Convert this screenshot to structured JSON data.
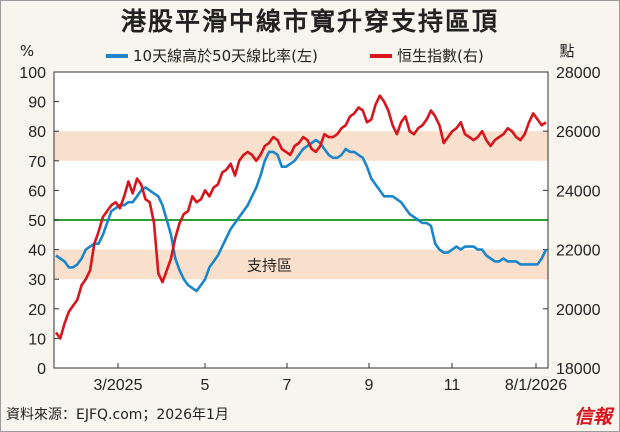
{
  "chart_data": {
    "type": "line",
    "title": "港股平滑中線市寬升穿支持區頂",
    "source": "資料來源：EJFQ.com；2026年1月",
    "brand": "信報",
    "left_axis": {
      "unit": "%",
      "range": [
        0,
        100
      ],
      "ticks": [
        0,
        10,
        20,
        30,
        40,
        50,
        60,
        70,
        80,
        90,
        100
      ]
    },
    "right_axis": {
      "unit": "點",
      "range": [
        18000,
        28000
      ],
      "ticks": [
        18000,
        20000,
        22000,
        24000,
        26000,
        28000
      ]
    },
    "x_tick_labels": [
      "3/2025",
      "5",
      "7",
      "9",
      "11",
      "8/1/2026"
    ],
    "bands": [
      {
        "from": 30,
        "to": 40,
        "label": "支持區"
      },
      {
        "from": 70,
        "to": 80,
        "label": ""
      }
    ],
    "reference_line": 50,
    "colors": {
      "breadth": "#1a86c8",
      "index": "#d8141c",
      "band": "#f9e0cc",
      "ref": "#2aa03a"
    },
    "series": [
      {
        "name": "10天線高於50天線比率(左)",
        "axis": "left",
        "values": [
          38,
          37,
          36,
          34,
          34,
          35,
          37,
          40,
          41,
          42,
          42,
          45,
          49,
          53,
          54,
          55,
          55,
          56,
          56,
          58,
          60,
          61,
          60,
          59,
          58,
          55,
          50,
          45,
          37,
          33,
          30,
          28,
          27,
          26,
          28,
          30,
          34,
          36,
          38,
          41,
          44,
          47,
          49,
          51,
          53,
          55,
          58,
          61,
          65,
          70,
          73,
          73,
          72,
          68,
          68,
          69,
          70,
          72,
          74,
          75,
          76,
          77,
          76,
          74,
          72,
          71,
          71,
          72,
          74,
          73,
          73,
          72,
          71,
          68,
          64,
          62,
          60,
          58,
          58,
          58,
          57,
          56,
          54,
          52,
          51,
          50,
          49,
          49,
          48,
          42,
          40,
          39,
          39,
          40,
          41,
          40,
          41,
          41,
          41,
          40,
          40,
          38,
          37,
          36,
          36,
          37,
          36,
          36,
          36,
          35,
          35,
          35,
          35,
          35,
          37,
          40
        ]
      },
      {
        "name": "恒生指數(右)",
        "axis": "right",
        "values": [
          19200,
          19000,
          19500,
          19900,
          20100,
          20300,
          20800,
          21000,
          21300,
          22200,
          22600,
          23100,
          23300,
          23500,
          23600,
          23400,
          23800,
          24300,
          23900,
          24400,
          24200,
          23700,
          23600,
          22900,
          21200,
          20900,
          21300,
          21700,
          22400,
          22900,
          23200,
          23300,
          23800,
          23600,
          23700,
          24000,
          23800,
          24100,
          24200,
          24600,
          24700,
          24900,
          24500,
          25000,
          25200,
          25300,
          25200,
          25000,
          25200,
          25500,
          25600,
          25800,
          25700,
          25400,
          25300,
          25200,
          25500,
          25600,
          25800,
          25700,
          25400,
          25300,
          25500,
          25900,
          25800,
          25800,
          25900,
          26100,
          26200,
          26500,
          26600,
          26800,
          26700,
          26300,
          26400,
          26900,
          27200,
          27000,
          26700,
          26200,
          25900,
          26300,
          26500,
          26000,
          25900,
          26100,
          26200,
          26400,
          26700,
          26500,
          26200,
          25600,
          25800,
          26000,
          26100,
          26300,
          25900,
          25800,
          25700,
          25800,
          26000,
          25700,
          25500,
          25700,
          25800,
          25900,
          26100,
          26000,
          25800,
          25700,
          25900,
          26300,
          26600,
          26400,
          26200,
          26300
        ]
      }
    ]
  }
}
